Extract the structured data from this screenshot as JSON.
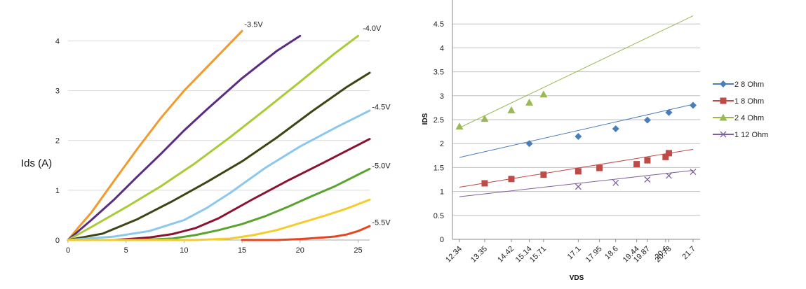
{
  "chart_data": [
    {
      "type": "line",
      "ylabel": "Ids (A)",
      "xlabel": "",
      "xlim": [
        0,
        26
      ],
      "ylim": [
        0,
        4.4
      ],
      "x_ticks": [
        "0",
        "5",
        "10",
        "15",
        "20",
        "25"
      ],
      "y_ticks": [
        "0",
        "1",
        "2",
        "3",
        "4"
      ],
      "grid": "horizontal",
      "curve_labels": [
        {
          "text": "-3.5V",
          "x": 15.2,
          "y": 4.28
        },
        {
          "text": "-4.0V",
          "x": 25.4,
          "y": 4.2
        },
        {
          "text": "-4.5V",
          "x": 26.2,
          "y": 2.62
        },
        {
          "text": "-5.0V",
          "x": 26.2,
          "y": 1.44
        },
        {
          "text": "-5.5V",
          "x": 26.2,
          "y": 0.3
        }
      ],
      "series": [
        {
          "color": "#f39a2c",
          "x": [
            0,
            1,
            2,
            4,
            6,
            8,
            10,
            12,
            15
          ],
          "y": [
            0,
            0.28,
            0.55,
            1.2,
            1.84,
            2.45,
            3.0,
            3.48,
            4.2
          ]
        },
        {
          "color": "#5a2d82",
          "x": [
            0,
            2,
            4,
            6,
            8,
            10,
            12,
            15,
            18,
            20
          ],
          "y": [
            0,
            0.4,
            0.82,
            1.28,
            1.73,
            2.2,
            2.63,
            3.25,
            3.8,
            4.1
          ]
        },
        {
          "color": "#a9cb38",
          "x": [
            0,
            2,
            5,
            8,
            11,
            14,
            17,
            20,
            23,
            25
          ],
          "y": [
            0,
            0.26,
            0.66,
            1.08,
            1.55,
            2.07,
            2.62,
            3.18,
            3.75,
            4.1
          ]
        },
        {
          "color": "#3f4414",
          "x": [
            0,
            3,
            6,
            9,
            12,
            15,
            18,
            21,
            24,
            26
          ],
          "y": [
            0,
            0.13,
            0.42,
            0.78,
            1.17,
            1.58,
            2.06,
            2.58,
            3.07,
            3.36
          ]
        },
        {
          "color": "#8cc8ee",
          "x": [
            0,
            4,
            7,
            10,
            12,
            14,
            17,
            20,
            23,
            26
          ],
          "y": [
            0,
            0.07,
            0.18,
            0.4,
            0.65,
            0.95,
            1.45,
            1.88,
            2.25,
            2.6
          ]
        },
        {
          "color": "#8b1230",
          "x": [
            0,
            4,
            7,
            9,
            11,
            13,
            16,
            19,
            22,
            26
          ],
          "y": [
            0,
            0.0,
            0.05,
            0.12,
            0.24,
            0.44,
            0.83,
            1.2,
            1.55,
            2.03
          ]
        },
        {
          "color": "#5aa32e",
          "x": [
            0,
            6,
            9,
            11,
            13,
            15,
            17,
            19,
            21,
            23,
            26
          ],
          "y": [
            0,
            0.0,
            0.03,
            0.1,
            0.2,
            0.32,
            0.48,
            0.67,
            0.88,
            1.08,
            1.43
          ]
        },
        {
          "color": "#f4cd2c",
          "x": [
            0,
            8,
            11,
            14,
            16,
            18,
            20,
            22,
            24,
            26
          ],
          "y": [
            0,
            0.0,
            0.0,
            0.03,
            0.1,
            0.2,
            0.34,
            0.48,
            0.63,
            0.81
          ]
        },
        {
          "color": "#e8451e",
          "x": [
            15,
            18,
            20,
            22,
            23,
            24,
            25,
            26
          ],
          "y": [
            0,
            0.0,
            0.02,
            0.05,
            0.07,
            0.11,
            0.18,
            0.28
          ]
        }
      ]
    },
    {
      "type": "line",
      "xlabel": "VDS",
      "ylabel": "IDS",
      "categories": [
        "12.34",
        "13.35",
        "14.42",
        "15.14",
        "15.71",
        "17.1",
        "17.95",
        "18.6",
        "19.44",
        "19.87",
        "20.6",
        "20.73",
        "21.7"
      ],
      "ylim": [
        0,
        5
      ],
      "y_ticks": [
        "0",
        "0.5",
        "1",
        "1.5",
        "2",
        "2.5",
        "3",
        "3.5",
        "4",
        "4.5"
      ],
      "grid": "horizontal",
      "legend_position": "right",
      "series": [
        {
          "name": "2 8 Ohm",
          "color": "#4a7ebb",
          "marker": "diamond",
          "points": [
            [
              15.14,
              2.0
            ],
            [
              17.1,
              2.15
            ],
            [
              18.6,
              2.31
            ],
            [
              19.87,
              2.49
            ],
            [
              20.73,
              2.65
            ],
            [
              21.7,
              2.8
            ]
          ],
          "trend": [
            [
              12.34,
              1.71
            ],
            [
              21.7,
              2.82
            ]
          ]
        },
        {
          "name": "1 8 Ohm",
          "color": "#be4b48",
          "marker": "square",
          "points": [
            [
              13.35,
              1.17
            ],
            [
              14.42,
              1.26
            ],
            [
              15.71,
              1.35
            ],
            [
              17.1,
              1.42
            ],
            [
              17.95,
              1.49
            ],
            [
              19.44,
              1.57
            ],
            [
              19.87,
              1.65
            ],
            [
              20.6,
              1.72
            ],
            [
              20.73,
              1.8
            ]
          ],
          "trend": [
            [
              12.34,
              1.09
            ],
            [
              21.7,
              1.88
            ]
          ]
        },
        {
          "name": "2 4 Ohm",
          "color": "#98b954",
          "marker": "triangle",
          "points": [
            [
              12.34,
              2.36
            ],
            [
              13.35,
              2.52
            ],
            [
              14.42,
              2.7
            ],
            [
              15.14,
              2.86
            ],
            [
              15.71,
              3.03
            ]
          ],
          "trend": [
            [
              12.34,
              2.33
            ],
            [
              21.7,
              4.67
            ]
          ]
        },
        {
          "name": "1 12 Ohm",
          "color": "#7d60a0",
          "marker": "x",
          "points": [
            [
              17.1,
              1.1
            ],
            [
              18.6,
              1.18
            ],
            [
              19.87,
              1.25
            ],
            [
              20.73,
              1.33
            ],
            [
              21.7,
              1.41
            ]
          ],
          "trend": [
            [
              12.34,
              0.89
            ],
            [
              21.7,
              1.44
            ]
          ]
        }
      ]
    }
  ]
}
